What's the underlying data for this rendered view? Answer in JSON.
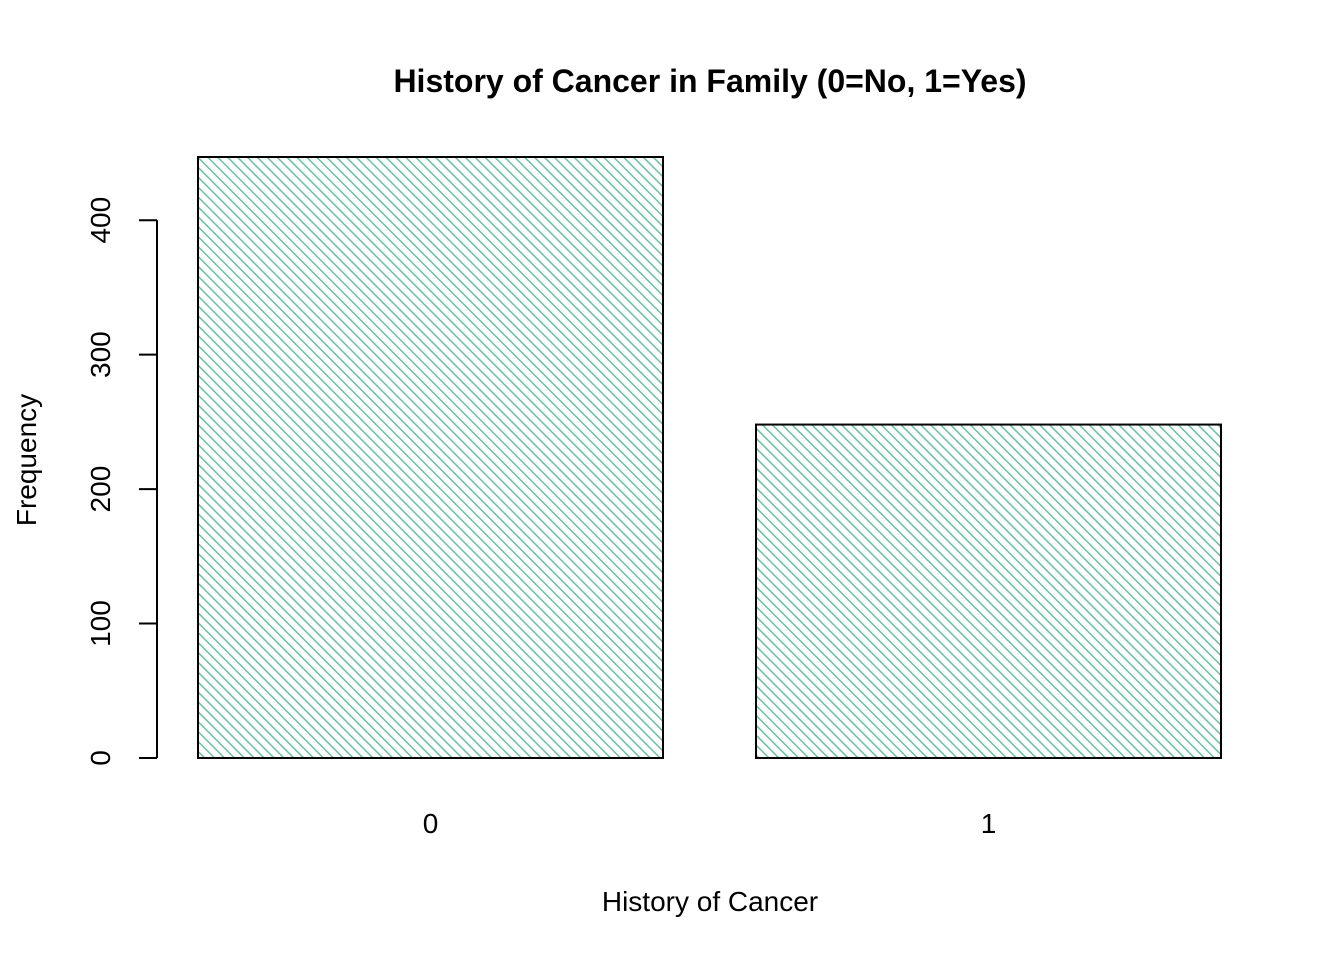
{
  "chart_data": {
    "type": "bar",
    "title": "History of Cancer in Family (0=No, 1=Yes)",
    "xlabel": "History of Cancer",
    "ylabel": "Frequency",
    "categories": [
      "0",
      "1"
    ],
    "values": [
      447,
      248
    ],
    "ylim": [
      0,
      447
    ],
    "yticks": [
      0,
      100,
      200,
      300,
      400
    ],
    "bar_fill": "#66c2a5",
    "bar_fill_style": "diagonal-hatch",
    "bar_border": "#000000",
    "grid": false,
    "legend": "none"
  }
}
